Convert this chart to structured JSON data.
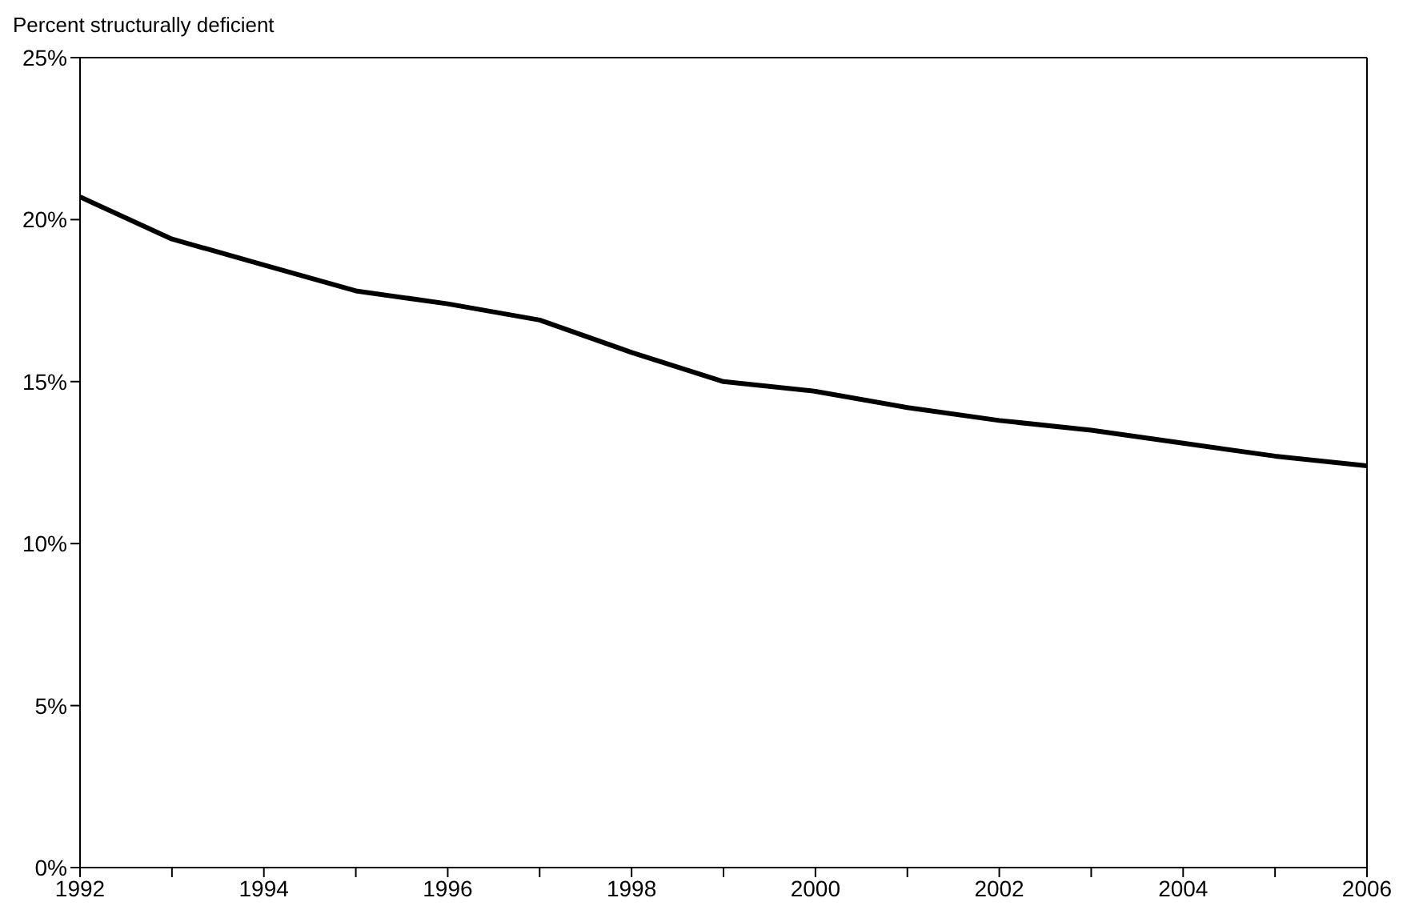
{
  "chart_data": {
    "type": "line",
    "ylabel": "Percent structurally deficient",
    "x": [
      1992,
      1993,
      1994,
      1995,
      1996,
      1997,
      1998,
      1999,
      2000,
      2001,
      2002,
      2003,
      2004,
      2005,
      2006
    ],
    "series": [
      {
        "color": "#000000",
        "values": [
          20.7,
          19.4,
          18.6,
          17.8,
          17.4,
          16.9,
          15.9,
          15.0,
          14.7,
          14.2,
          13.8,
          13.5,
          13.1,
          12.7,
          12.4
        ]
      }
    ],
    "xlim": [
      1992,
      2006
    ],
    "xticks": [
      1992,
      {
        "value": 1993,
        "label": null
      },
      1994,
      {
        "value": 1995,
        "label": null
      },
      1996,
      {
        "value": 1997,
        "label": null
      },
      1998,
      {
        "value": 1999,
        "label": null
      },
      2000,
      {
        "value": 2001,
        "label": null
      },
      2002,
      {
        "value": 2003,
        "label": null
      },
      2004,
      {
        "value": 2005,
        "label": null
      },
      2006
    ],
    "ylim": [
      0,
      25
    ],
    "yticks": [
      {
        "value": 0,
        "label": "0%"
      },
      {
        "value": 5,
        "label": "5%"
      },
      {
        "value": 10,
        "label": "10%"
      },
      {
        "value": 15,
        "label": "15%"
      },
      {
        "value": 20,
        "label": "20%"
      },
      {
        "value": 25,
        "label": "25%"
      }
    ],
    "grid": false,
    "legend": false,
    "marker": "none",
    "line_style": "solid"
  }
}
